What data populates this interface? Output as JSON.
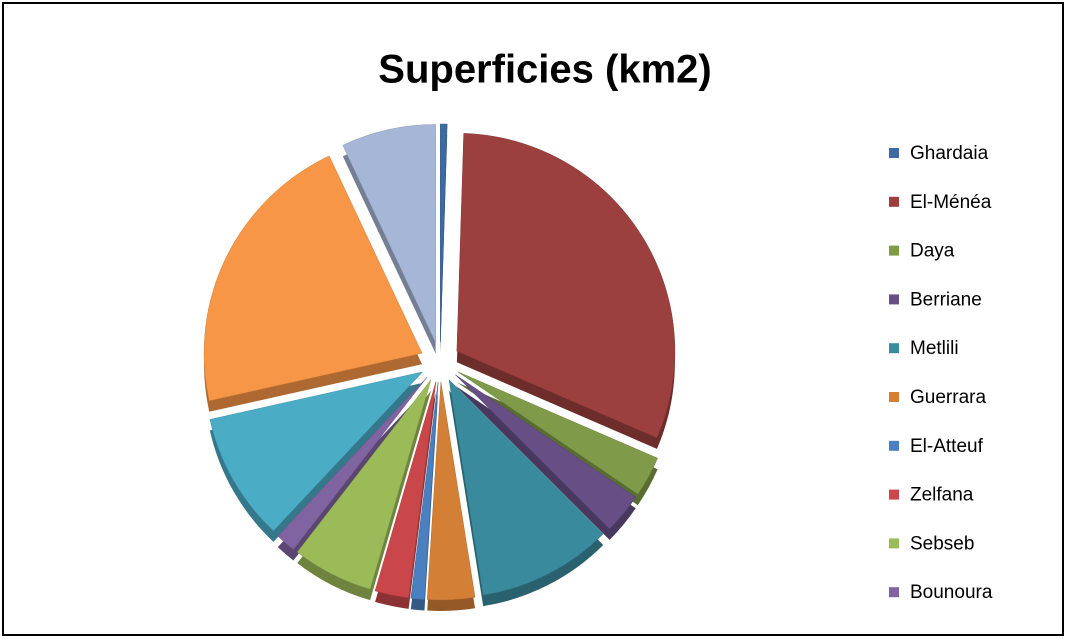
{
  "chart_data": {
    "type": "pie",
    "title": "Superficies (km2)",
    "categories": [
      "Ghardaia",
      "El-Ménéa",
      "Daya",
      "Berriane",
      "Metlili",
      "Guerrara",
      "El-Atteuf",
      "Zelfana",
      "Sebseb",
      "Bounoura",
      null,
      null,
      null
    ],
    "values": [
      0.5,
      31,
      3,
      3,
      10,
      3.5,
      1,
      2.5,
      6,
      1.5,
      9.5,
      21.5,
      7
    ],
    "colors": [
      "#3d6aa0",
      "#9b403e",
      "#7f9a48",
      "#674f86",
      "#3a8a9e",
      "#d37f36",
      "#4a7fc0",
      "#c9474a",
      "#9bbb59",
      "#8064a2",
      "#4bacc6",
      "#f79646",
      "#a6b6d6"
    ],
    "legend": "right",
    "exploded": true
  }
}
